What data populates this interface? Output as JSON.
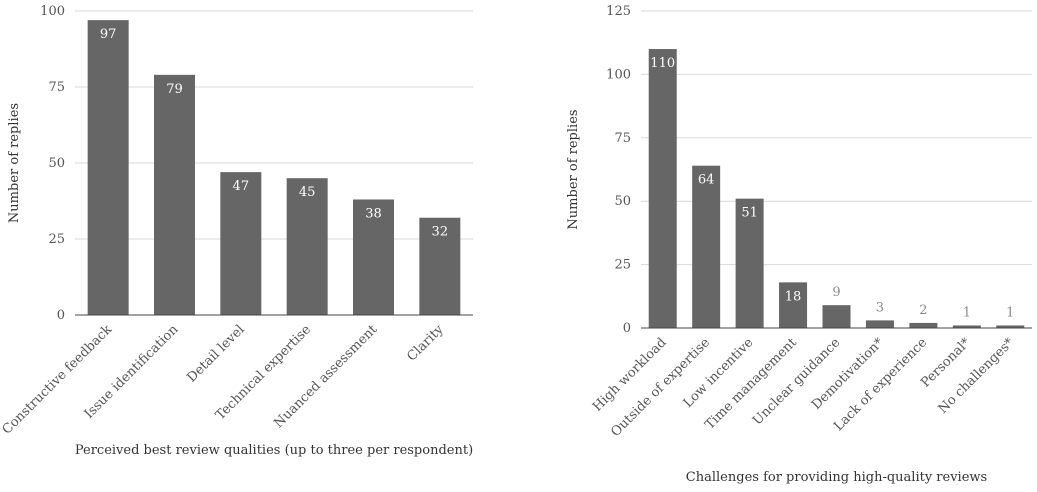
{
  "colors": {
    "bar": "#666666",
    "grid": "#d9d9d9",
    "label_inside": "#ffffff",
    "label_outside": "#8a8a8a"
  },
  "chart_data": [
    {
      "type": "bar",
      "categories": [
        "Constructive feedback",
        "Issue identification",
        "Detail level",
        "Technical expertise",
        "Nuanced assessment",
        "Clarity"
      ],
      "values": [
        97,
        79,
        47,
        45,
        38,
        32
      ],
      "xlabel": "Perceived best review qualities (up to three per respondent)",
      "ylabel": "Number of replies",
      "ylim": [
        0,
        100
      ],
      "yticks": [
        0,
        25,
        50,
        75,
        100
      ],
      "grid": true
    },
    {
      "type": "bar",
      "categories": [
        "High workload",
        "Outside of expertise",
        "Low incentive",
        "Time management",
        "Unclear guidance",
        "Demotivation*",
        "Lack of experience",
        "Personal*",
        "No challenges*"
      ],
      "values": [
        110,
        64,
        51,
        18,
        9,
        3,
        2,
        1,
        1
      ],
      "xlabel": "Challenges for providing high-quality reviews",
      "ylabel": "Number of replies",
      "ylim": [
        0,
        125
      ],
      "yticks": [
        0,
        25,
        50,
        75,
        100,
        125
      ],
      "grid": true
    }
  ]
}
